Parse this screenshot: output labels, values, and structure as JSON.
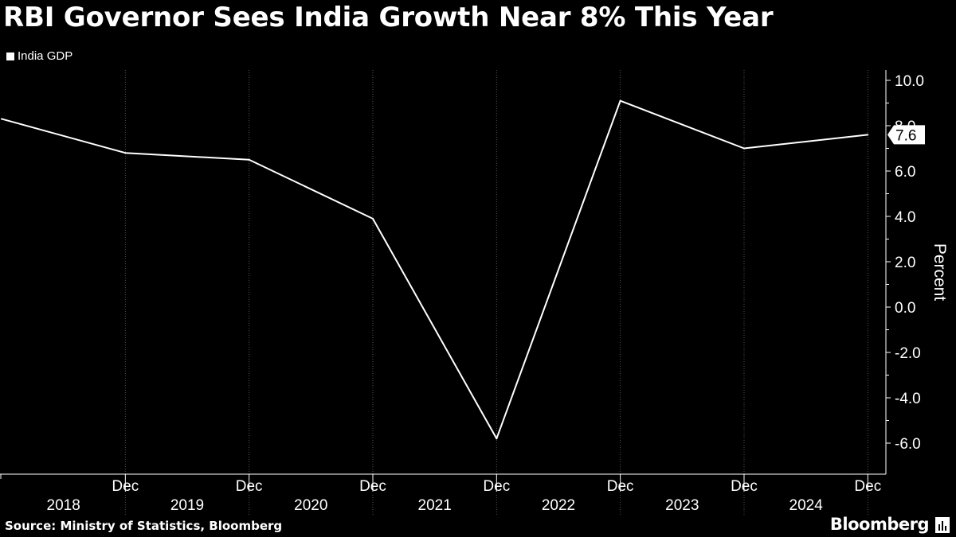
{
  "chart_data": {
    "type": "line",
    "title": "RBI Governor Sees India Growth Near 8% This Year",
    "series": [
      {
        "name": "India GDP",
        "x": [
          "2017-12",
          "2018-12",
          "2019-12",
          "2020-12",
          "2021-12",
          "2022-12",
          "2023-12",
          "2024-12"
        ],
        "values": [
          8.3,
          6.8,
          6.5,
          3.9,
          -5.8,
          9.1,
          7.0,
          7.6
        ]
      }
    ],
    "last_value_label": "7.6",
    "ylabel": "Percent",
    "ylim": [
      -7.0,
      10.5
    ],
    "yticks": [
      10.0,
      8.0,
      6.0,
      4.0,
      2.0,
      0.0,
      -2.0,
      -4.0,
      -6.0
    ],
    "ytick_labels": [
      "10.0",
      "8.0",
      "6.0",
      "4.0",
      "2.0",
      "0.0",
      "-2.0",
      "-4.0",
      "-6.0"
    ],
    "xtick_month_labels": [
      "Dec",
      "Dec",
      "Dec",
      "Dec",
      "Dec",
      "Dec",
      "Dec"
    ],
    "x_year_labels": [
      "2018",
      "2019",
      "2020",
      "2021",
      "2022",
      "2023",
      "2024"
    ],
    "grid": "vertical-dotted",
    "legend": "top-left",
    "colors": {
      "background": "#000000",
      "line": "#ffffff",
      "grid": "#555555"
    }
  },
  "source": "Source: Ministry of Statistics, Bloomberg",
  "brand": "Bloomberg"
}
